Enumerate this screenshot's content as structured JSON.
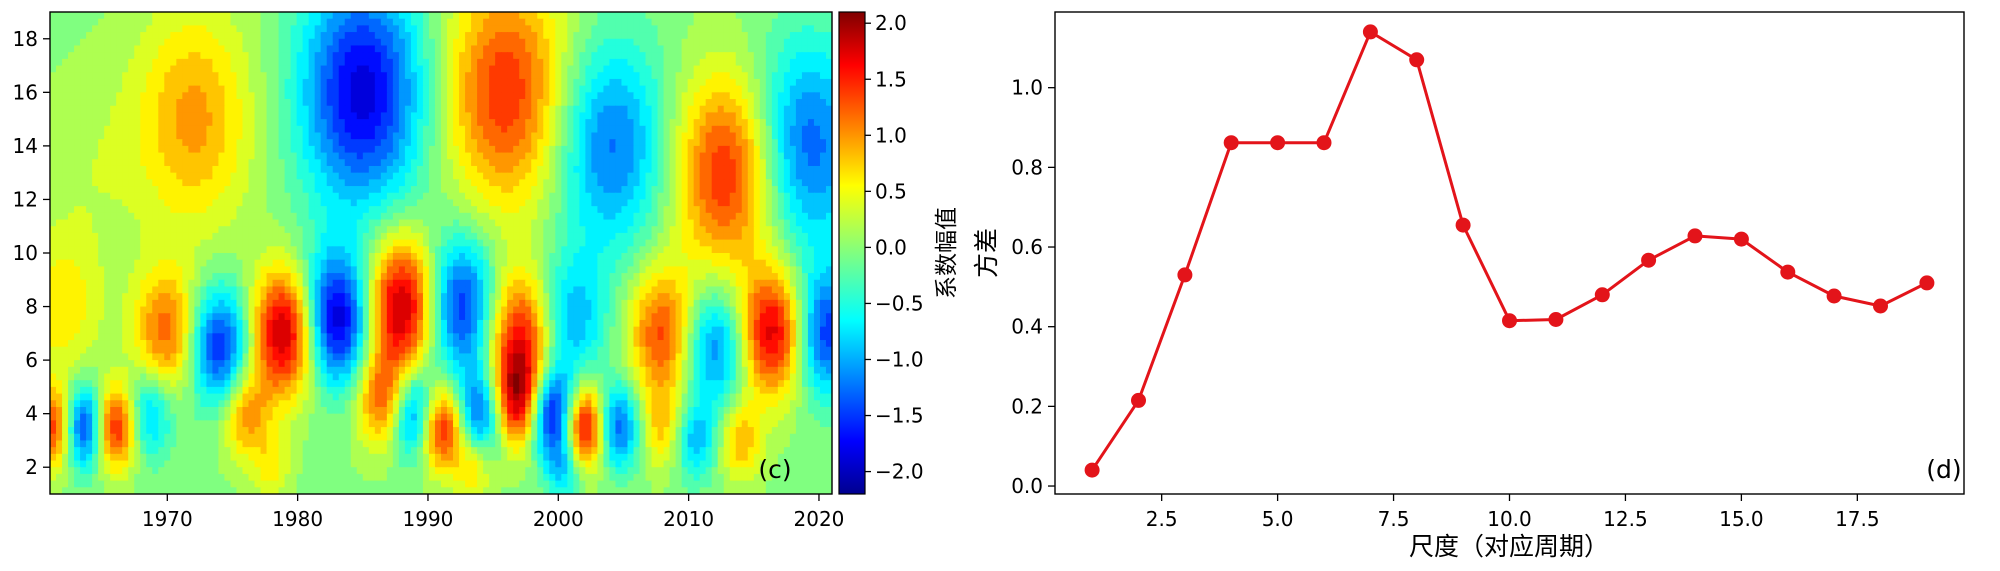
{
  "chart_data": [
    {
      "type": "heatmap",
      "panel_label": "(c)",
      "xlabel": "",
      "ylabel": "",
      "xlim": [
        1961,
        2021
      ],
      "ylim": [
        1,
        19
      ],
      "x_ticks": [
        1970,
        1980,
        1990,
        2000,
        2010,
        2020
      ],
      "y_ticks": [
        2,
        4,
        6,
        8,
        10,
        12,
        14,
        16,
        18
      ],
      "colorbar": {
        "label": "系数幅值",
        "range": [
          -2.2,
          2.1
        ],
        "ticks": [
          2.0,
          1.5,
          1.0,
          0.5,
          0.0,
          -0.5,
          -1.0,
          -1.5,
          -2.0
        ],
        "tick_labels": [
          "2.0",
          "1.5",
          "1.0",
          "0.5",
          "0.0",
          "−0.5",
          "−1.0",
          "−1.5",
          "−2.0"
        ],
        "colormap": "jet"
      },
      "features": [
        {
          "year": 1972,
          "scale": 15,
          "value": 0.9
        },
        {
          "year": 1985,
          "scale": 16,
          "value": -1.8
        },
        {
          "year": 1996,
          "scale": 16,
          "value": 1.4
        },
        {
          "year": 2004,
          "scale": 14,
          "value": -1.2
        },
        {
          "year": 2013,
          "scale": 13,
          "value": 1.5
        },
        {
          "year": 2019,
          "scale": 14,
          "value": -1.3
        },
        {
          "year": 1964,
          "scale": 13,
          "value": 0.2
        },
        {
          "year": 1962,
          "scale": 8,
          "value": 0.6
        },
        {
          "year": 1970,
          "scale": 7,
          "value": 1.2
        },
        {
          "year": 1974,
          "scale": 6.5,
          "value": -1.6
        },
        {
          "year": 1979,
          "scale": 7,
          "value": 2.0
        },
        {
          "year": 1983,
          "scale": 7.5,
          "value": -2.0
        },
        {
          "year": 1988,
          "scale": 8,
          "value": 2.0
        },
        {
          "year": 1992.5,
          "scale": 8,
          "value": -1.6
        },
        {
          "year": 1997,
          "scale": 7,
          "value": 1.5
        },
        {
          "year": 2001,
          "scale": 7.5,
          "value": -0.9
        },
        {
          "year": 2008,
          "scale": 7,
          "value": 1.3
        },
        {
          "year": 2012,
          "scale": 6.5,
          "value": -1.2
        },
        {
          "year": 2016.5,
          "scale": 7,
          "value": 1.8
        },
        {
          "year": 2020.5,
          "scale": 7,
          "value": -1.5
        },
        {
          "year": 1961.5,
          "scale": 3.5,
          "value": 1.6
        },
        {
          "year": 1963.5,
          "scale": 3.5,
          "value": -1.9
        },
        {
          "year": 1966,
          "scale": 3.5,
          "value": 1.7
        },
        {
          "year": 1968.5,
          "scale": 4,
          "value": -1.0
        },
        {
          "year": 1976,
          "scale": 4,
          "value": 1.0
        },
        {
          "year": 1986.5,
          "scale": 4.5,
          "value": 1.2
        },
        {
          "year": 1989,
          "scale": 4,
          "value": -1.5
        },
        {
          "year": 1991,
          "scale": 3.5,
          "value": 1.8
        },
        {
          "year": 1994,
          "scale": 4,
          "value": -1.3
        },
        {
          "year": 1997,
          "scale": 4.5,
          "value": 1.8
        },
        {
          "year": 1999.5,
          "scale": 4,
          "value": -2.0
        },
        {
          "year": 2002,
          "scale": 3.5,
          "value": 2.0
        },
        {
          "year": 2004.5,
          "scale": 3.5,
          "value": -1.4
        },
        {
          "year": 2008,
          "scale": 3.5,
          "value": 0.7
        },
        {
          "year": 2010.5,
          "scale": 3,
          "value": -0.9
        },
        {
          "year": 2014,
          "scale": 3,
          "value": 0.8
        },
        {
          "year": 1978,
          "scale": 2,
          "value": 0.5
        },
        {
          "year": 1993.5,
          "scale": 2,
          "value": 0.7
        },
        {
          "year": 2000.5,
          "scale": 2,
          "value": -0.8
        }
      ]
    },
    {
      "type": "line",
      "panel_label": "(d)",
      "xlabel": "尺度（对应周期）",
      "ylabel": "方差",
      "xlim": [
        0.2,
        19.8
      ],
      "ylim": [
        -0.02,
        1.19
      ],
      "x_ticks": [
        2.5,
        5.0,
        7.5,
        10.0,
        12.5,
        15.0,
        17.5
      ],
      "x_tick_labels": [
        "2.5",
        "5.0",
        "7.5",
        "10.0",
        "12.5",
        "15.0",
        "17.5"
      ],
      "y_ticks": [
        0.0,
        0.2,
        0.4,
        0.6,
        0.8,
        1.0
      ],
      "y_tick_labels": [
        "0.0",
        "0.2",
        "0.4",
        "0.6",
        "0.8",
        "1.0"
      ],
      "color": "#e3141a",
      "x": [
        1,
        2,
        3,
        4,
        5,
        6,
        7,
        8,
        9,
        10,
        11,
        12,
        13,
        14,
        15,
        16,
        17,
        18,
        19
      ],
      "y": [
        0.04,
        0.215,
        0.53,
        0.862,
        0.862,
        0.862,
        1.14,
        1.07,
        0.655,
        0.415,
        0.418,
        0.48,
        0.567,
        0.628,
        0.62,
        0.537,
        0.477,
        0.452,
        0.51
      ]
    }
  ]
}
